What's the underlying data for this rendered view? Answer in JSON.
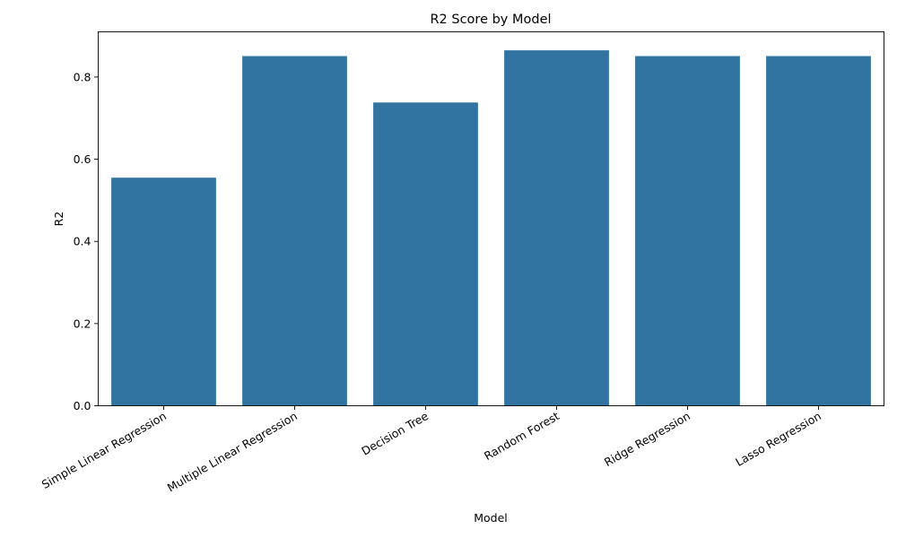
{
  "chart_data": {
    "type": "bar",
    "title": "R2 Score by Model",
    "xlabel": "Model",
    "ylabel": "R2",
    "categories": [
      "Simple Linear Regression",
      "Multiple Linear Regression",
      "Decision Tree",
      "Random Forest",
      "Ridge Regression",
      "Lasso Regression"
    ],
    "values": [
      0.555,
      0.851,
      0.738,
      0.865,
      0.851,
      0.851
    ],
    "ylim": [
      0,
      0.91
    ],
    "yticks": [
      0.0,
      0.2,
      0.4,
      0.6,
      0.8
    ],
    "ytick_labels": [
      "0.0",
      "0.2",
      "0.4",
      "0.6",
      "0.8"
    ],
    "bar_color": "#3274a1",
    "grid": false,
    "legend": "none"
  }
}
